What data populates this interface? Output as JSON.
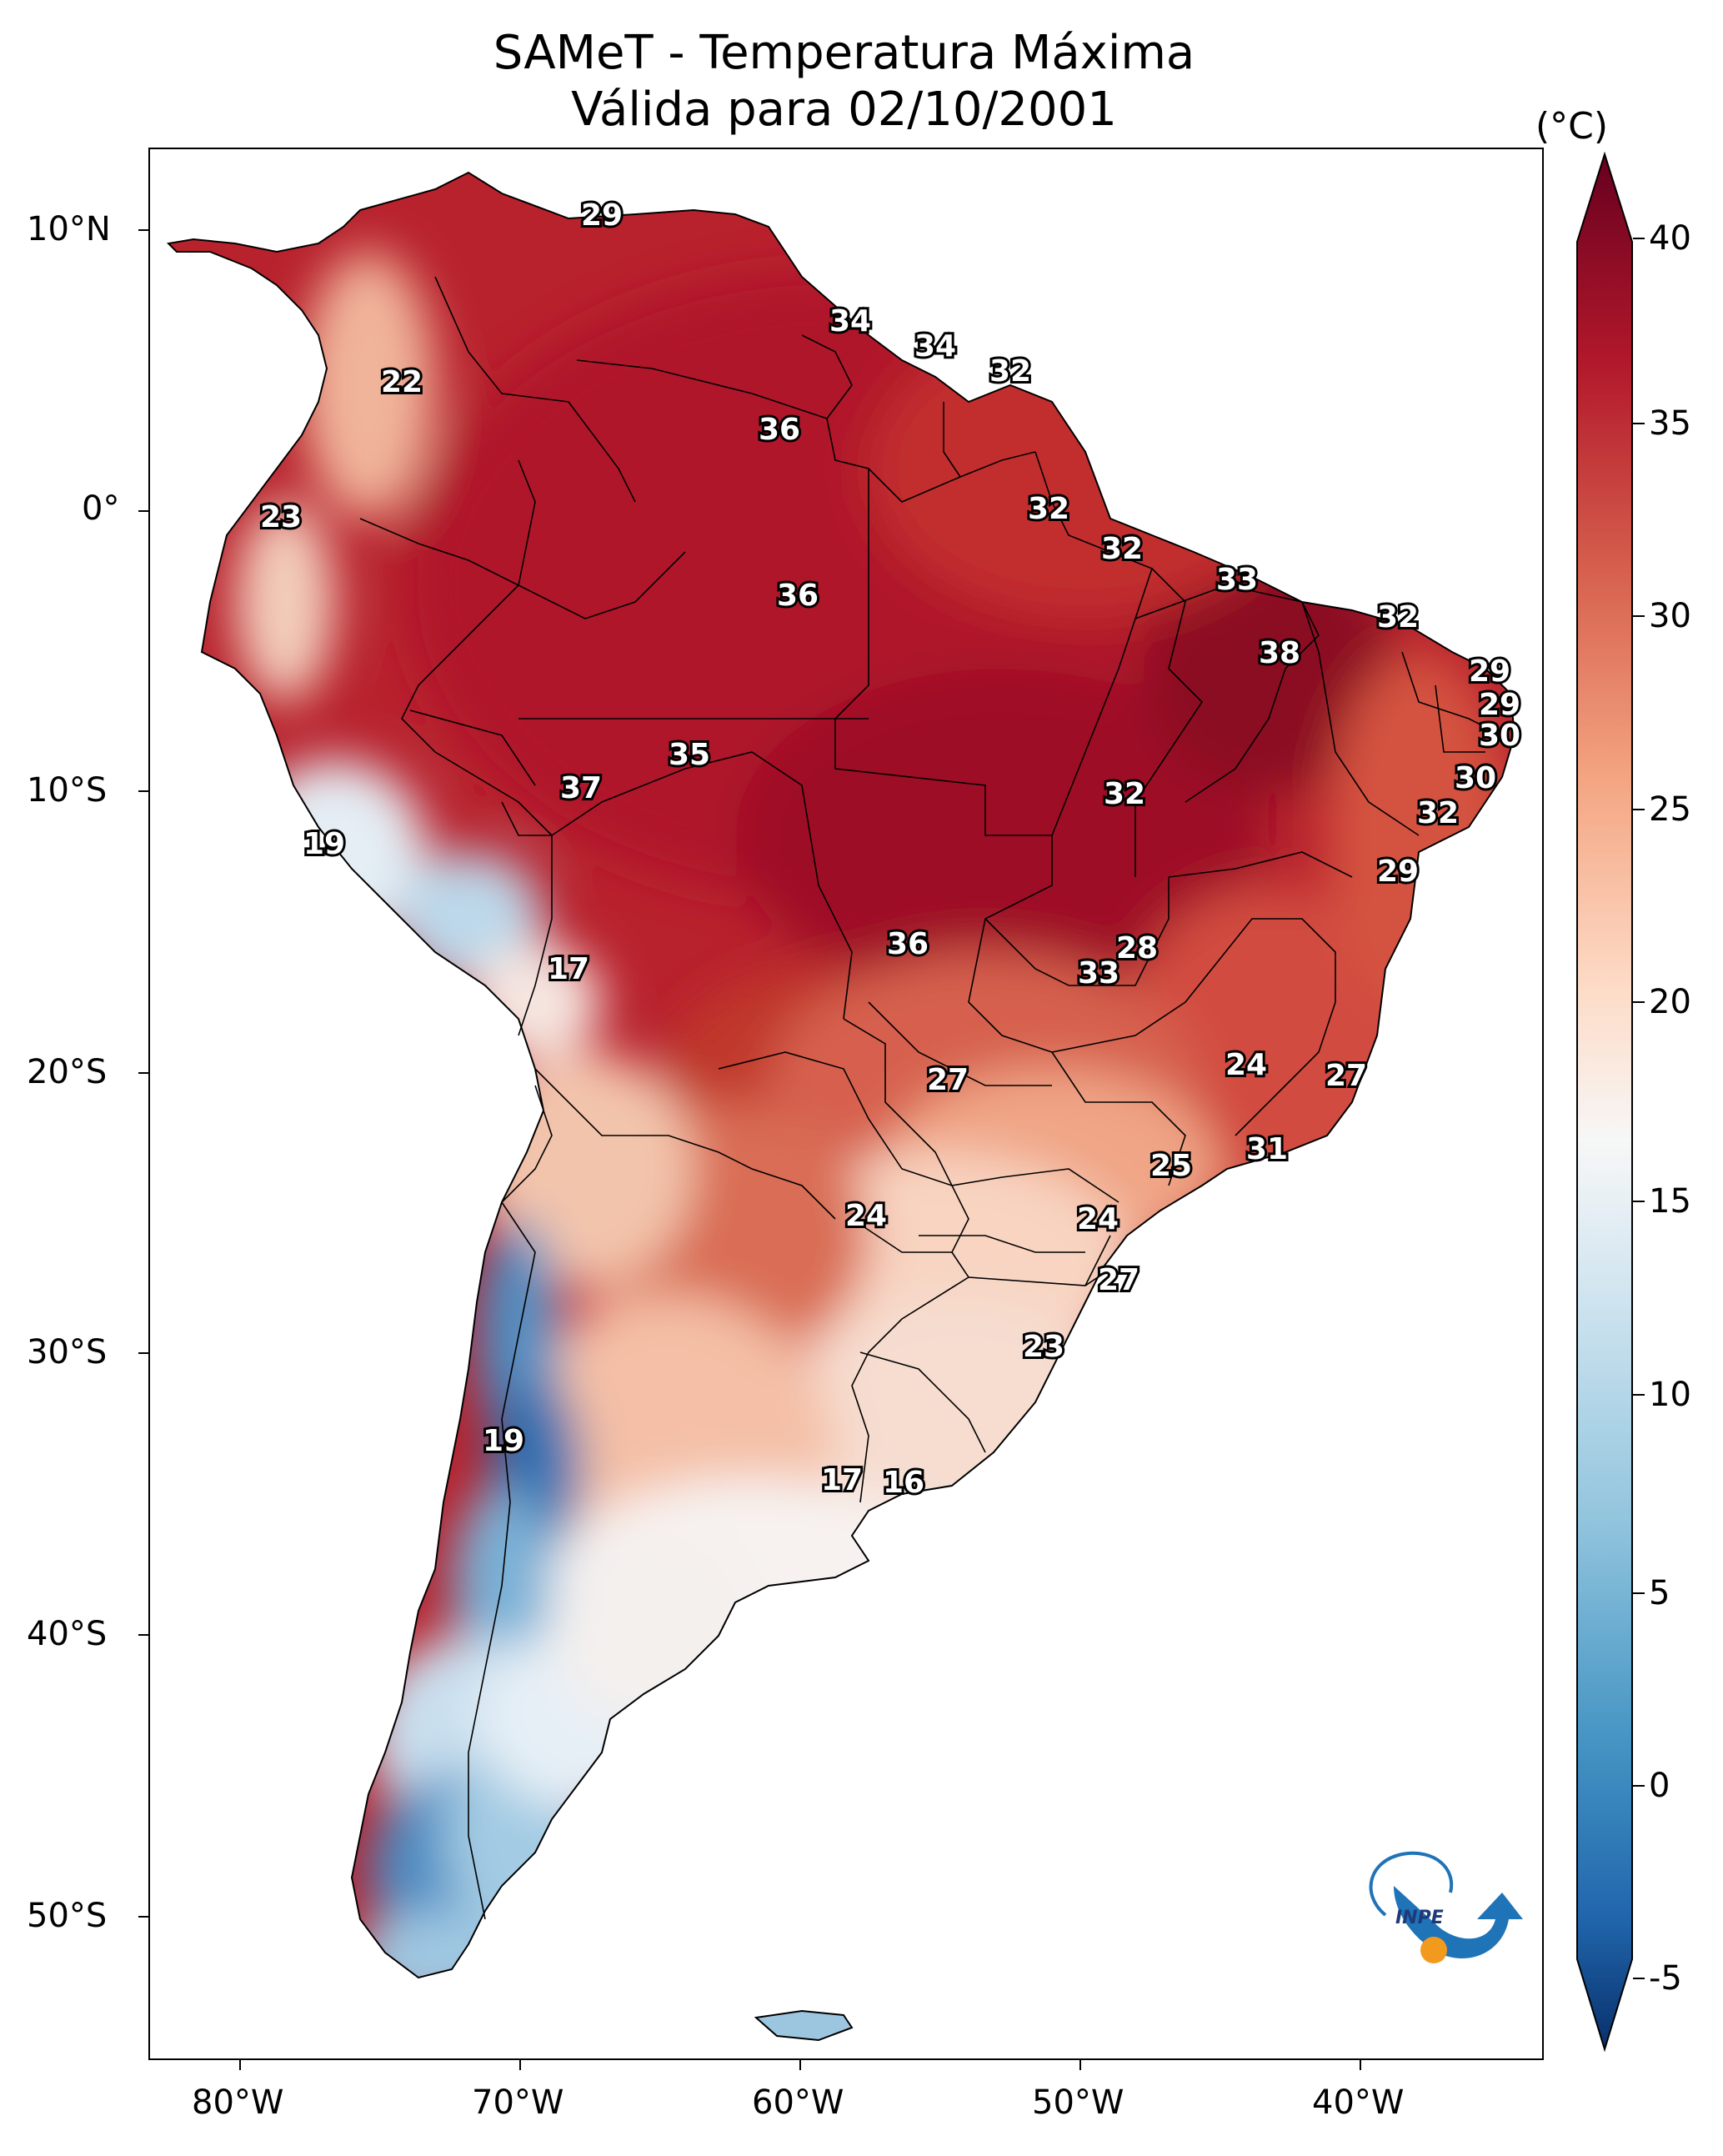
{
  "title": {
    "line1": "SAMeT - Temperatura Máxima",
    "line2": "Válida para 02/10/2001"
  },
  "axes": {
    "lat_labels": [
      "10°N",
      "0°",
      "10°S",
      "20°S",
      "30°S",
      "40°S",
      "50°S"
    ],
    "lon_labels": [
      "80°W",
      "70°W",
      "60°W",
      "50°W",
      "40°W"
    ]
  },
  "colorbar": {
    "unit": "(°C)",
    "ticks": [
      "40",
      "35",
      "30",
      "25",
      "20",
      "15",
      "10",
      "5",
      "0",
      "-5"
    ],
    "min": -5,
    "max": 40,
    "colors": [
      "#08306b",
      "#2166ac",
      "#4393c3",
      "#92c5de",
      "#d1e5f0",
      "#f7f7f7",
      "#fddbc7",
      "#f4a582",
      "#d6604d",
      "#b2182b",
      "#67001f"
    ]
  },
  "logo": {
    "text": "INPE"
  },
  "station_values": [
    {
      "id": "s1",
      "value": "29"
    },
    {
      "id": "s2",
      "value": "34"
    },
    {
      "id": "s3",
      "value": "34"
    },
    {
      "id": "s4",
      "value": "32"
    },
    {
      "id": "s5",
      "value": "22"
    },
    {
      "id": "s6",
      "value": "36"
    },
    {
      "id": "s7",
      "value": "23"
    },
    {
      "id": "s8",
      "value": "32"
    },
    {
      "id": "s9",
      "value": "32"
    },
    {
      "id": "s10",
      "value": "36"
    },
    {
      "id": "s11",
      "value": "33"
    },
    {
      "id": "s12",
      "value": "32"
    },
    {
      "id": "s13",
      "value": "38"
    },
    {
      "id": "s14",
      "value": "29"
    },
    {
      "id": "s15",
      "value": "29"
    },
    {
      "id": "s16",
      "value": "30"
    },
    {
      "id": "s17",
      "value": "35"
    },
    {
      "id": "s18",
      "value": "37"
    },
    {
      "id": "s19",
      "value": "30"
    },
    {
      "id": "s20",
      "value": "32"
    },
    {
      "id": "s21",
      "value": "32"
    },
    {
      "id": "s22",
      "value": "19"
    },
    {
      "id": "s23",
      "value": "29"
    },
    {
      "id": "s24",
      "value": "28"
    },
    {
      "id": "s25",
      "value": "36"
    },
    {
      "id": "s26",
      "value": "17"
    },
    {
      "id": "s27",
      "value": "33"
    },
    {
      "id": "s28",
      "value": "24"
    },
    {
      "id": "s29",
      "value": "27"
    },
    {
      "id": "s30",
      "value": "27"
    },
    {
      "id": "s31",
      "value": "31"
    },
    {
      "id": "s32",
      "value": "25"
    },
    {
      "id": "s33",
      "value": "24"
    },
    {
      "id": "s34",
      "value": "24"
    },
    {
      "id": "s35",
      "value": "27"
    },
    {
      "id": "s36",
      "value": "23"
    },
    {
      "id": "s37",
      "value": "19"
    },
    {
      "id": "s38",
      "value": "17"
    },
    {
      "id": "s39",
      "value": "16"
    }
  ]
}
